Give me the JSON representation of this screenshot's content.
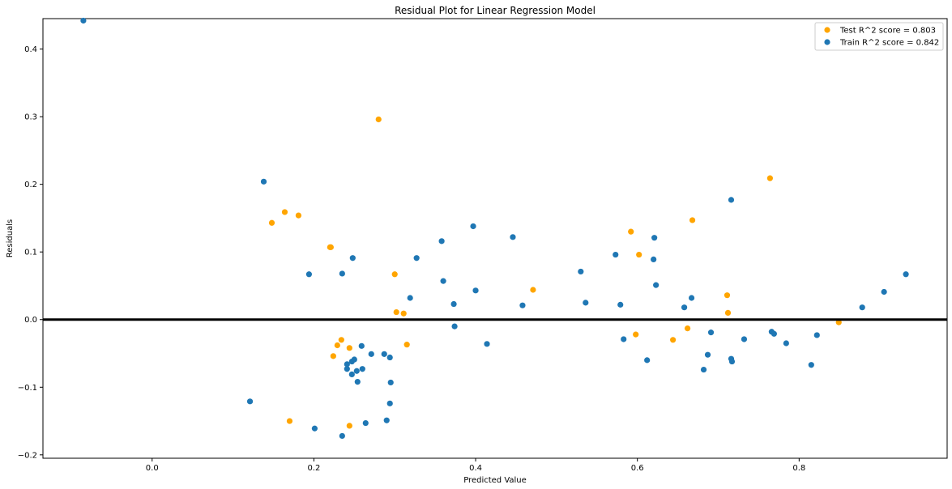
{
  "chart_data": {
    "type": "scatter",
    "title": "Residual Plot for Linear Regression Model",
    "xlabel": "Predicted Value",
    "ylabel": "Residuals",
    "xlim": [
      -0.135,
      0.983
    ],
    "ylim": [
      -0.205,
      0.445
    ],
    "xticks": [
      0.0,
      0.2,
      0.4,
      0.6,
      0.8
    ],
    "xtick_labels": [
      "0.0",
      "0.2",
      "0.4",
      "0.6",
      "0.8"
    ],
    "yticks": [
      -0.2,
      -0.1,
      0.0,
      0.1,
      0.2,
      0.3,
      0.4
    ],
    "ytick_labels": [
      "−0.2",
      "−0.1",
      "0.0",
      "0.1",
      "0.2",
      "0.3",
      "0.4"
    ],
    "grid": false,
    "legend_position": "top-right",
    "reference_line": {
      "y": 0.0,
      "color": "#000000"
    },
    "series": [
      {
        "name": "Test R^2 score = 0.803",
        "color": "#ffa500",
        "points": [
          [
            0.28,
            0.296
          ],
          [
            0.148,
            0.143
          ],
          [
            0.164,
            0.159
          ],
          [
            0.181,
            0.154
          ],
          [
            0.22,
            0.107
          ],
          [
            0.221,
            0.107
          ],
          [
            0.3,
            0.067
          ],
          [
            0.302,
            0.011
          ],
          [
            0.311,
            0.009
          ],
          [
            0.315,
            -0.037
          ],
          [
            0.229,
            -0.038
          ],
          [
            0.234,
            -0.03
          ],
          [
            0.244,
            -0.042
          ],
          [
            0.224,
            -0.054
          ],
          [
            0.17,
            -0.15
          ],
          [
            0.244,
            -0.157
          ],
          [
            0.471,
            0.044
          ],
          [
            0.592,
            0.13
          ],
          [
            0.602,
            0.096
          ],
          [
            0.598,
            -0.022
          ],
          [
            0.644,
            -0.03
          ],
          [
            0.662,
            -0.013
          ],
          [
            0.668,
            0.147
          ],
          [
            0.711,
            0.036
          ],
          [
            0.712,
            0.01
          ],
          [
            0.764,
            0.209
          ],
          [
            0.849,
            -0.004
          ]
        ]
      },
      {
        "name": "Train R^2 score = 0.842",
        "color": "#1f77b4",
        "points": [
          [
            -0.085,
            0.442
          ],
          [
            0.138,
            0.204
          ],
          [
            0.194,
            0.067
          ],
          [
            0.235,
            0.068
          ],
          [
            0.248,
            0.091
          ],
          [
            0.121,
            -0.121
          ],
          [
            0.201,
            -0.161
          ],
          [
            0.235,
            -0.172
          ],
          [
            0.241,
            -0.066
          ],
          [
            0.241,
            -0.073
          ],
          [
            0.247,
            -0.062
          ],
          [
            0.25,
            -0.059
          ],
          [
            0.247,
            -0.081
          ],
          [
            0.253,
            -0.076
          ],
          [
            0.254,
            -0.092
          ],
          [
            0.259,
            -0.039
          ],
          [
            0.26,
            -0.073
          ],
          [
            0.264,
            -0.153
          ],
          [
            0.271,
            -0.051
          ],
          [
            0.287,
            -0.051
          ],
          [
            0.29,
            -0.149
          ],
          [
            0.294,
            -0.124
          ],
          [
            0.294,
            -0.056
          ],
          [
            0.295,
            -0.093
          ],
          [
            0.319,
            0.032
          ],
          [
            0.327,
            0.091
          ],
          [
            0.358,
            0.116
          ],
          [
            0.36,
            0.057
          ],
          [
            0.373,
            0.023
          ],
          [
            0.374,
            -0.01
          ],
          [
            0.397,
            0.138
          ],
          [
            0.4,
            0.043
          ],
          [
            0.414,
            -0.036
          ],
          [
            0.446,
            0.122
          ],
          [
            0.458,
            0.021
          ],
          [
            0.53,
            0.071
          ],
          [
            0.536,
            0.025
          ],
          [
            0.573,
            0.096
          ],
          [
            0.579,
            0.022
          ],
          [
            0.583,
            -0.029
          ],
          [
            0.612,
            -0.06
          ],
          [
            0.621,
            0.121
          ],
          [
            0.62,
            0.089
          ],
          [
            0.623,
            0.051
          ],
          [
            0.658,
            0.018
          ],
          [
            0.667,
            0.032
          ],
          [
            0.682,
            -0.074
          ],
          [
            0.687,
            -0.052
          ],
          [
            0.691,
            -0.019
          ],
          [
            0.716,
            0.177
          ],
          [
            0.716,
            -0.058
          ],
          [
            0.717,
            -0.062
          ],
          [
            0.732,
            -0.029
          ],
          [
            0.766,
            -0.018
          ],
          [
            0.769,
            -0.021
          ],
          [
            0.784,
            -0.035
          ],
          [
            0.815,
            -0.067
          ],
          [
            0.822,
            -0.023
          ],
          [
            0.878,
            0.018
          ],
          [
            0.905,
            0.041
          ],
          [
            0.932,
            0.067
          ]
        ]
      }
    ]
  }
}
